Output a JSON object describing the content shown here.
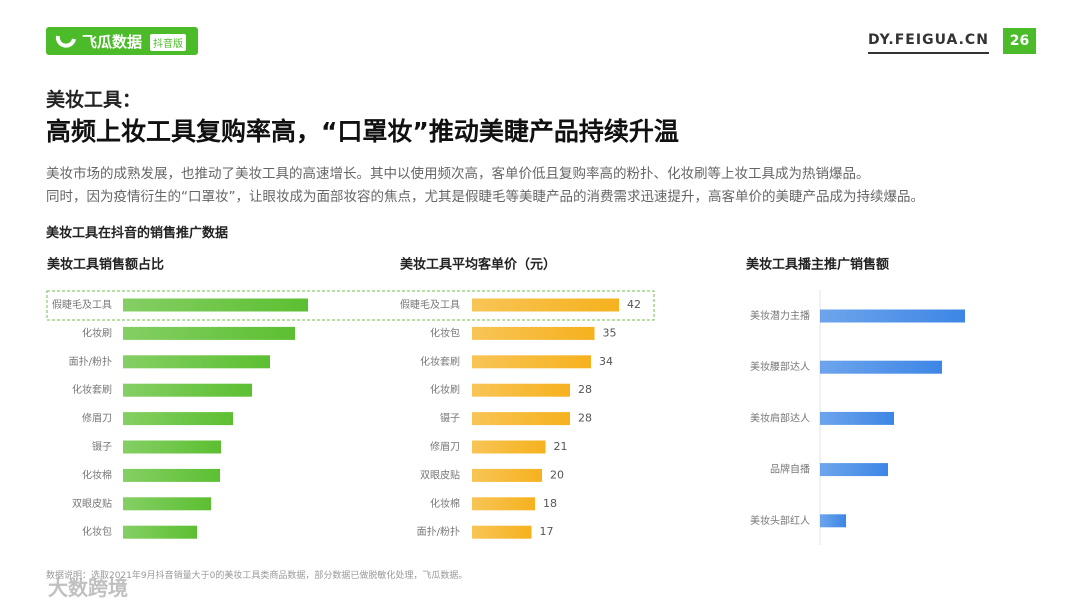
{
  "header": {
    "logo": "飞瓜数据",
    "logo_tag": "抖音版",
    "site": "DY.FEIGUA.CN",
    "page": "26"
  },
  "heading": "美妆工具：",
  "title": "高频上妆工具复购率高，“口罩妆”推动美睫产品持续升温",
  "description": [
    "美妆市场的成熟发展，也推动了美妆工具的高速增长。其中以使用频次高，客单价低且复购率高的粉扑、化妆刷等上妆工具成为热销爆品。",
    "同时，因为疫情衍生的“口罩妆”，让眼妆成为面部妆容的焦点，尤其是假睫毛等美睫产品的消费需求迅速提升，高客单价的美睫产品成为持续爆品。"
  ],
  "section_title": "美妆工具在抖音的销售推广数据",
  "footnote": "数据说明：选取2021年9月抖音销量大于0的美妆工具类商品数据，部分数据已做脱敏化处理，飞瓜数据。",
  "watermark": "大数跨境",
  "chart_data": [
    {
      "type": "bar",
      "orientation": "horizontal",
      "title": "美妆工具销售额占比",
      "categories": [
        "假睫毛及工具",
        "化妆刷",
        "面扑/粉扑",
        "化妆套刷",
        "修眉刀",
        "镊子",
        "化妆棉",
        "双眼皮贴",
        "化妆包"
      ],
      "values": [
        18.5,
        17.2,
        14.7,
        12.9,
        11.0,
        9.8,
        9.7,
        8.8,
        7.4
      ],
      "color": "#5cbf31",
      "show_values": false
    },
    {
      "type": "bar",
      "orientation": "horizontal",
      "title": "美妆工具平均客单价（元）",
      "categories": [
        "假睫毛及工具",
        "化妆包",
        "化妆套刷",
        "化妆刷",
        "镊子",
        "修眉刀",
        "双眼皮贴",
        "化妆棉",
        "面扑/粉扑"
      ],
      "values": [
        42,
        35,
        34,
        28,
        28,
        21,
        20,
        18,
        17
      ],
      "color": "#f6b11e",
      "show_values": true
    },
    {
      "type": "bar",
      "orientation": "horizontal",
      "title": "美妆工具播主推广销售额",
      "categories": [
        "美妆潜力主播",
        "美妆腰部达人",
        "美妆肩部达人",
        "品牌自播",
        "美妆头部红人"
      ],
      "values": [
        14.5,
        12.2,
        7.4,
        6.8,
        2.6
      ],
      "color": "#3d86e6",
      "show_values": false
    }
  ]
}
